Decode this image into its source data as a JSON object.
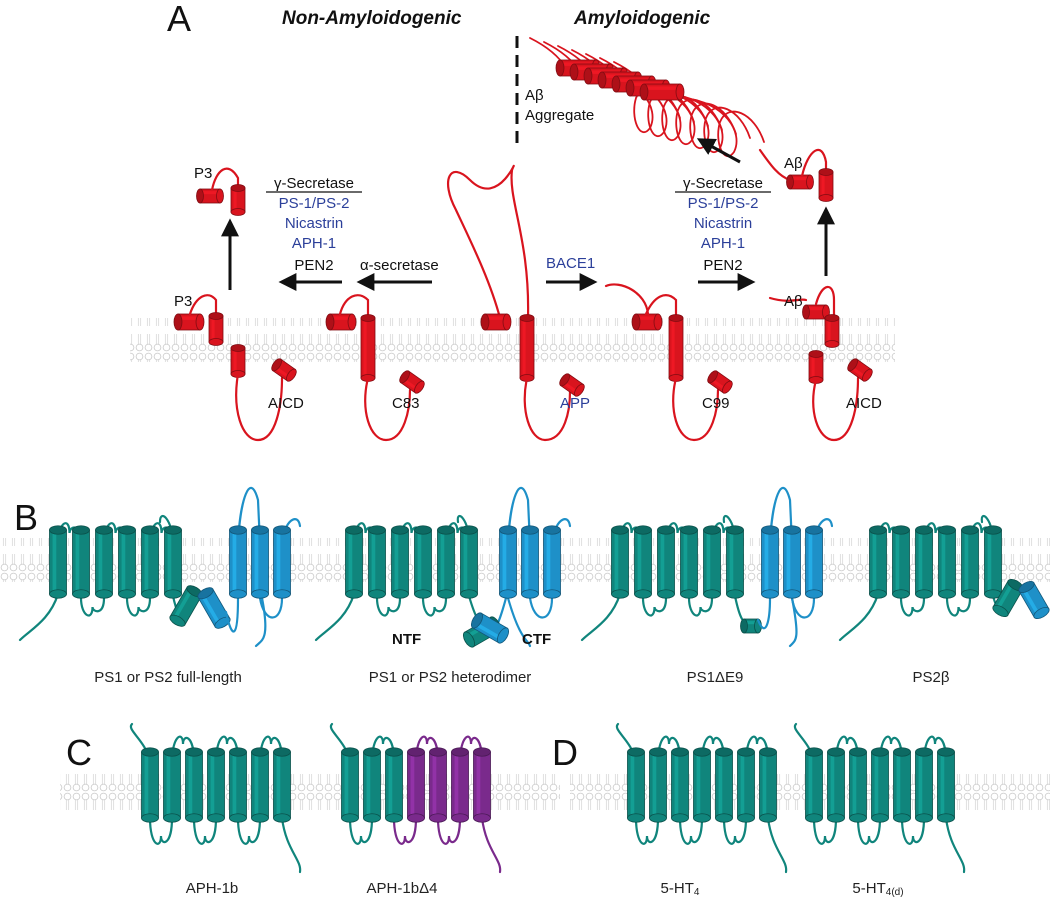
{
  "panels": {
    "a": "A",
    "b": "B",
    "c": "C",
    "d": "D"
  },
  "pathway": {
    "non_amyloidogenic": "Non-Amyloidogenic",
    "amyloidogenic": "Amyloidogenic",
    "aggregate_line1": "Aβ",
    "aggregate_line2": "Aggregate",
    "gamma_secretase": "γ-Secretase",
    "ps": "PS-1/PS-2",
    "nicastrin": "Nicastrin",
    "aph1": "APH-1",
    "pen2": "PEN2",
    "alpha_secretase": "α-secretase",
    "bace1": "BACE1",
    "p3": "P3",
    "abeta": "Aβ",
    "aicd": "AICD",
    "c83": "C83",
    "app": "APP",
    "c99": "C99"
  },
  "presenilin": {
    "ntf": "NTF",
    "ctf": "CTF",
    "captions": [
      "PS1 or PS2 full-length",
      "PS1 or PS2 heterodimer",
      "PS1ΔE9",
      "PS2β"
    ]
  },
  "aph": {
    "captions": [
      "APH-1b",
      "APH-1bΔ4"
    ]
  },
  "receptor": {
    "captions": [
      "5-HT",
      "5-HT"
    ],
    "subscripts": [
      "4",
      "4(d)"
    ]
  },
  "colors": {
    "app_red": "#d9141e",
    "teal": "#10857c",
    "blue": "#1e90c8",
    "purple": "#7a2a8c",
    "label_blue": "#2b3f9a"
  }
}
